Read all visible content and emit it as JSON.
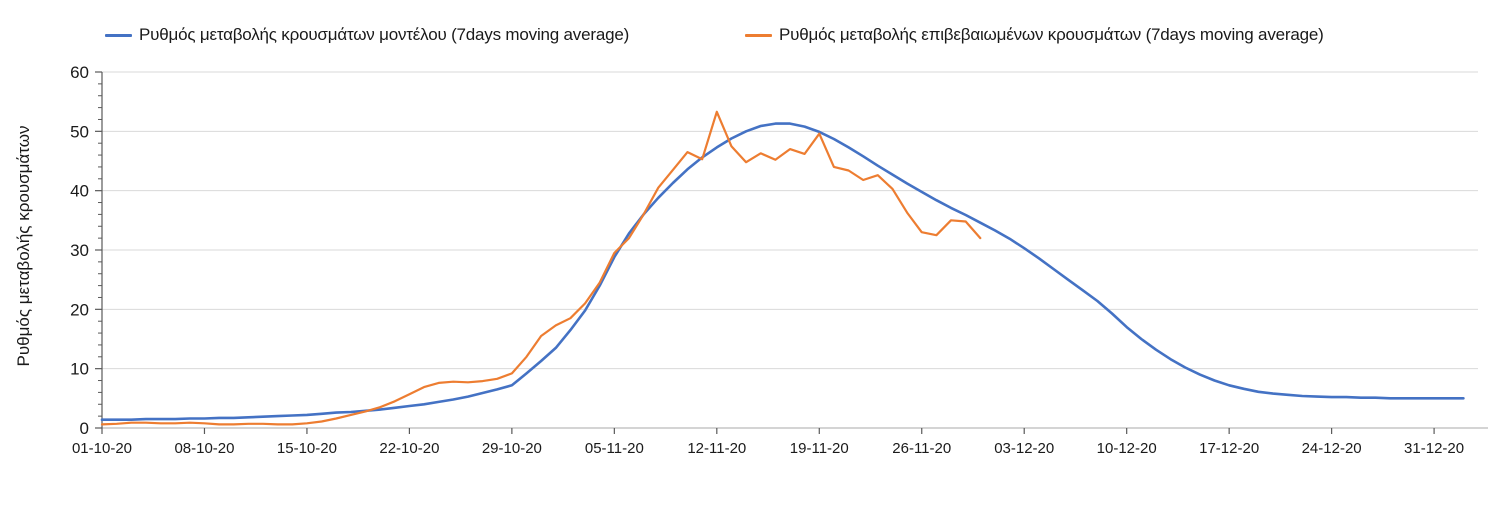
{
  "colors": {
    "model_line": "#4472C4",
    "confirmed_line": "#ED7D31",
    "gridline": "#D9D9D9",
    "x_axis_line": "#C6C6C6",
    "axis_tick": "#595959",
    "text": "#1A1A1A"
  },
  "legend": {
    "items": [
      {
        "label": "Ρυθμός μεταβολής κρουσμάτων μοντέλου (7days moving average)",
        "color": "#4472C4"
      },
      {
        "label": "Ρυθμός μεταβολής επιβεβαιωμένων κρουσμάτων (7days moving average)",
        "color": "#ED7D31"
      }
    ]
  },
  "chart_data": {
    "type": "line",
    "title": "",
    "xlabel": "",
    "ylabel": "Ρυθμός μεταβολής κρουσμάτων",
    "ylim": [
      0,
      60
    ],
    "yticks": [
      0,
      10,
      20,
      30,
      40,
      50,
      60
    ],
    "y_minor_tick_step": 2,
    "grid": "horizontal",
    "legend_position": "top",
    "x_unit": "days since 01-10-20",
    "x_axis_days": 94,
    "x_tick_days": [
      0,
      7,
      14,
      21,
      28,
      35,
      42,
      49,
      56,
      63,
      70,
      77,
      84,
      91
    ],
    "x_tick_labels": [
      "01-10-20",
      "08-10-20",
      "15-10-20",
      "22-10-20",
      "29-10-20",
      "05-11-20",
      "12-11-20",
      "19-11-20",
      "26-11-20",
      "03-12-20",
      "10-12-20",
      "17-12-20",
      "24-12-20",
      "31-12-20"
    ],
    "series": [
      {
        "name": "Ρυθμός μεταβολής κρουσμάτων μοντέλου (7days moving average)",
        "color": "#4472C4",
        "start_day": 0,
        "values": [
          1.4,
          1.4,
          1.4,
          1.5,
          1.5,
          1.5,
          1.6,
          1.6,
          1.7,
          1.7,
          1.8,
          1.9,
          2.0,
          2.1,
          2.2,
          2.4,
          2.6,
          2.7,
          2.9,
          3.1,
          3.4,
          3.7,
          4.0,
          4.4,
          4.8,
          5.3,
          5.9,
          6.5,
          7.2,
          9.2,
          11.3,
          13.5,
          16.5,
          19.8,
          24.0,
          28.8,
          32.8,
          36.0,
          38.8,
          41.3,
          43.6,
          45.6,
          47.3,
          48.8,
          50.0,
          50.9,
          51.3,
          51.3,
          50.8,
          49.9,
          48.7,
          47.3,
          45.8,
          44.2,
          42.7,
          41.2,
          39.8,
          38.4,
          37.1,
          35.9,
          34.6,
          33.3,
          31.9,
          30.3,
          28.6,
          26.8,
          25.0,
          23.2,
          21.4,
          19.3,
          17.0,
          15.0,
          13.2,
          11.6,
          10.2,
          9.0,
          8.0,
          7.2,
          6.6,
          6.1,
          5.8,
          5.6,
          5.4,
          5.3,
          5.2,
          5.2,
          5.1,
          5.1,
          5.0,
          5.0,
          5.0,
          5.0,
          5.0,
          5.0
        ]
      },
      {
        "name": "Ρυθμός μεταβολής επιβεβαιωμένων κρουσμάτων (7days moving average)",
        "color": "#ED7D31",
        "start_day": 0,
        "values": [
          0.6,
          0.7,
          0.9,
          0.9,
          0.8,
          0.8,
          0.9,
          0.8,
          0.6,
          0.6,
          0.7,
          0.7,
          0.6,
          0.6,
          0.8,
          1.1,
          1.6,
          2.2,
          2.8,
          3.5,
          4.5,
          5.7,
          6.9,
          7.6,
          7.8,
          7.7,
          7.9,
          8.3,
          9.2,
          12.0,
          15.5,
          17.3,
          18.5,
          21.0,
          24.5,
          29.5,
          32.0,
          36.0,
          40.5,
          43.5,
          46.5,
          45.3,
          53.3,
          47.5,
          44.8,
          46.3,
          45.2,
          47.0,
          46.2,
          49.6,
          44.0,
          43.4,
          41.8,
          42.6,
          40.3,
          36.3,
          33.0,
          32.5,
          35.0,
          34.8,
          32.0
        ]
      }
    ]
  }
}
